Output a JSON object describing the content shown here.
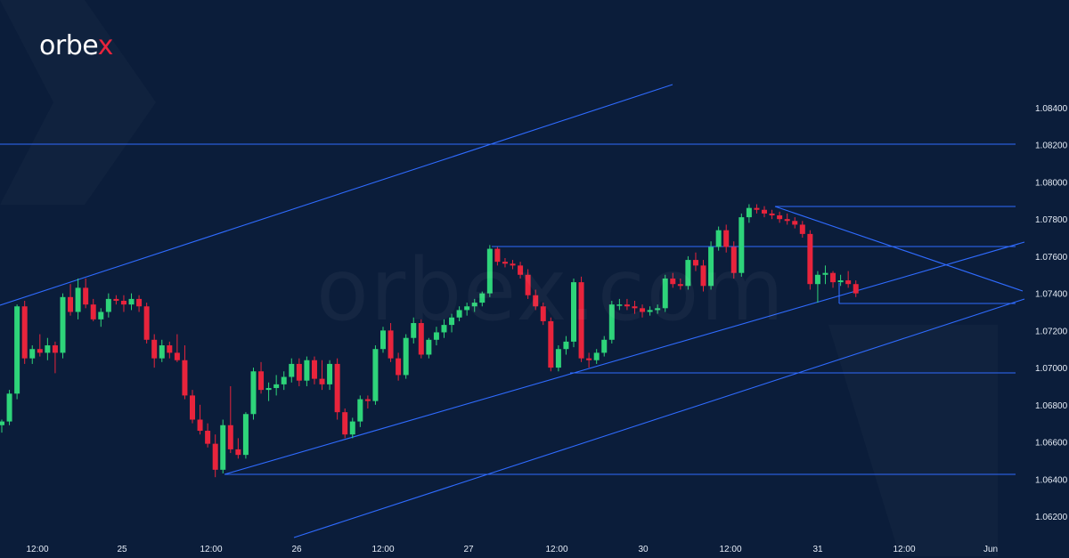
{
  "brand": {
    "name": "orbe",
    "name_x": "x",
    "watermark": "orbex.com"
  },
  "colors": {
    "background": "#0b1d3a",
    "line": "#2f6bff",
    "bull": "#2ed47a",
    "bear": "#e8243c",
    "text": "#e6edf7"
  },
  "chart_data": {
    "type": "candlestick",
    "title": "",
    "xlabel": "",
    "ylabel": "",
    "ylim": [
      1.061,
      1.086
    ],
    "y_ticks": [
      "1.06200",
      "1.06400",
      "1.06600",
      "1.06800",
      "1.07000",
      "1.07200",
      "1.07400",
      "1.07600",
      "1.07800",
      "1.08000",
      "1.08200",
      "1.08400"
    ],
    "x_ticks": [
      "12:00",
      "25",
      "12:00",
      "26",
      "12:00",
      "27",
      "12:00",
      "30",
      "12:00",
      "31",
      "12:00",
      "Jun"
    ],
    "candles": [
      [
        1.0669,
        1.0672,
        1.0665,
        1.0671
      ],
      [
        1.0671,
        1.0688,
        1.0669,
        1.0686
      ],
      [
        1.0686,
        1.0734,
        1.0683,
        1.0733
      ],
      [
        1.0733,
        1.0736,
        1.0702,
        1.0705
      ],
      [
        1.0705,
        1.0712,
        1.0702,
        1.071
      ],
      [
        1.071,
        1.0718,
        1.0706,
        1.0708
      ],
      [
        1.0708,
        1.0716,
        1.0704,
        1.0712
      ],
      [
        1.0712,
        1.0714,
        1.0697,
        1.0708
      ],
      [
        1.0708,
        1.074,
        1.0705,
        1.0738
      ],
      [
        1.0738,
        1.0745,
        1.0728,
        1.073
      ],
      [
        1.073,
        1.0748,
        1.0726,
        1.0743
      ],
      [
        1.0743,
        1.0748,
        1.0732,
        1.0734
      ],
      [
        1.0734,
        1.0737,
        1.0725,
        1.0726
      ],
      [
        1.0726,
        1.0732,
        1.0722,
        1.073
      ],
      [
        1.073,
        1.074,
        1.0727,
        1.0737
      ],
      [
        1.0737,
        1.0739,
        1.0734,
        1.0736
      ],
      [
        1.0736,
        1.0739,
        1.073,
        1.0734
      ],
      [
        1.0734,
        1.074,
        1.0731,
        1.0737
      ],
      [
        1.0737,
        1.0739,
        1.073,
        1.0733
      ],
      [
        1.0733,
        1.0735,
        1.0713,
        1.0715
      ],
      [
        1.0715,
        1.0718,
        1.07,
        1.0705
      ],
      [
        1.0705,
        1.0715,
        1.0703,
        1.0712
      ],
      [
        1.0712,
        1.0714,
        1.0705,
        1.0708
      ],
      [
        1.0708,
        1.0718,
        1.0703,
        1.0704
      ],
      [
        1.0704,
        1.0712,
        1.0683,
        1.0685
      ],
      [
        1.0685,
        1.0688,
        1.067,
        1.0672
      ],
      [
        1.0672,
        1.068,
        1.0664,
        1.0666
      ],
      [
        1.0666,
        1.067,
        1.0657,
        1.0659
      ],
      [
        1.0659,
        1.0664,
        1.0641,
        1.0645
      ],
      [
        1.0645,
        1.0672,
        1.0643,
        1.0669
      ],
      [
        1.0669,
        1.069,
        1.0654,
        1.0656
      ],
      [
        1.0656,
        1.0662,
        1.0651,
        1.0653
      ],
      [
        1.0653,
        1.0676,
        1.0651,
        1.0675
      ],
      [
        1.0675,
        1.07,
        1.0672,
        1.0698
      ],
      [
        1.0698,
        1.0703,
        1.0686,
        1.0688
      ],
      [
        1.0688,
        1.0692,
        1.0682,
        1.0689
      ],
      [
        1.0689,
        1.0696,
        1.0685,
        1.0691
      ],
      [
        1.0691,
        1.0698,
        1.0688,
        1.0695
      ],
      [
        1.0695,
        1.0705,
        1.0692,
        1.0702
      ],
      [
        1.0702,
        1.0705,
        1.069,
        1.0693
      ],
      [
        1.0693,
        1.0706,
        1.069,
        1.0704
      ],
      [
        1.0704,
        1.0706,
        1.0691,
        1.0694
      ],
      [
        1.0694,
        1.0704,
        1.0688,
        1.0691
      ],
      [
        1.0691,
        1.0704,
        1.0688,
        1.0702
      ],
      [
        1.0702,
        1.0705,
        1.0672,
        1.0676
      ],
      [
        1.0676,
        1.0678,
        1.0662,
        1.0664
      ],
      [
        1.0664,
        1.0673,
        1.0662,
        1.0671
      ],
      [
        1.0671,
        1.0685,
        1.0668,
        1.0683
      ],
      [
        1.0683,
        1.0685,
        1.0678,
        1.0682
      ],
      [
        1.0682,
        1.0712,
        1.068,
        1.071
      ],
      [
        1.071,
        1.0722,
        1.0708,
        1.072
      ],
      [
        1.072,
        1.0724,
        1.0703,
        1.0705
      ],
      [
        1.0705,
        1.0708,
        1.0693,
        1.0696
      ],
      [
        1.0696,
        1.0718,
        1.0694,
        1.0716
      ],
      [
        1.0716,
        1.0727,
        1.0713,
        1.0724
      ],
      [
        1.0724,
        1.0726,
        1.0705,
        1.0707
      ],
      [
        1.0707,
        1.0716,
        1.0705,
        1.0715
      ],
      [
        1.0715,
        1.0722,
        1.0712,
        1.0719
      ],
      [
        1.0719,
        1.0726,
        1.0716,
        1.0723
      ],
      [
        1.0723,
        1.0729,
        1.0719,
        1.0727
      ],
      [
        1.0727,
        1.0733,
        1.0725,
        1.0731
      ],
      [
        1.0731,
        1.0735,
        1.0728,
        1.0733
      ],
      [
        1.0733,
        1.0737,
        1.073,
        1.0735
      ],
      [
        1.0735,
        1.0741,
        1.0733,
        1.074
      ],
      [
        1.074,
        1.0766,
        1.0738,
        1.0764
      ],
      [
        1.0764,
        1.0765,
        1.0755,
        1.0757
      ],
      [
        1.0757,
        1.0759,
        1.0754,
        1.0756
      ],
      [
        1.0756,
        1.0758,
        1.0753,
        1.0755
      ],
      [
        1.0755,
        1.0757,
        1.0748,
        1.075
      ],
      [
        1.075,
        1.0753,
        1.0737,
        1.0739
      ],
      [
        1.0739,
        1.0742,
        1.0731,
        1.0733
      ],
      [
        1.0733,
        1.0735,
        1.0723,
        1.0725
      ],
      [
        1.0725,
        1.0727,
        1.0698,
        1.07
      ],
      [
        1.07,
        1.0712,
        1.0698,
        1.071
      ],
      [
        1.071,
        1.0717,
        1.0707,
        1.0714
      ],
      [
        1.0714,
        1.0748,
        1.0711,
        1.0746
      ],
      [
        1.0746,
        1.0749,
        1.0703,
        1.0705
      ],
      [
        1.0705,
        1.0708,
        1.07,
        1.0704
      ],
      [
        1.0704,
        1.071,
        1.0702,
        1.0708
      ],
      [
        1.0708,
        1.0717,
        1.0706,
        1.0715
      ],
      [
        1.0715,
        1.0736,
        1.0713,
        1.0734
      ],
      [
        1.0734,
        1.0737,
        1.0731,
        1.0734
      ],
      [
        1.0734,
        1.0737,
        1.0731,
        1.0733
      ],
      [
        1.0733,
        1.0736,
        1.0729,
        1.0732
      ],
      [
        1.0732,
        1.0734,
        1.0727,
        1.073
      ],
      [
        1.073,
        1.0733,
        1.0728,
        1.0731
      ],
      [
        1.0731,
        1.0734,
        1.0729,
        1.0732
      ],
      [
        1.0732,
        1.075,
        1.073,
        1.0748
      ],
      [
        1.0748,
        1.0751,
        1.0743,
        1.0745
      ],
      [
        1.0745,
        1.0748,
        1.0742,
        1.0744
      ],
      [
        1.0744,
        1.076,
        1.0742,
        1.0758
      ],
      [
        1.0758,
        1.0762,
        1.0752,
        1.0755
      ],
      [
        1.0755,
        1.0758,
        1.0741,
        1.0744
      ],
      [
        1.0744,
        1.0768,
        1.0742,
        1.0765
      ],
      [
        1.0765,
        1.0776,
        1.0763,
        1.0774
      ],
      [
        1.0774,
        1.0777,
        1.0762,
        1.0765
      ],
      [
        1.0765,
        1.0768,
        1.0748,
        1.0751
      ],
      [
        1.0751,
        1.0783,
        1.0749,
        1.0781
      ],
      [
        1.0781,
        1.0788,
        1.0778,
        1.0786
      ],
      [
        1.0786,
        1.0788,
        1.0783,
        1.0785
      ],
      [
        1.0785,
        1.0787,
        1.0781,
        1.0783
      ],
      [
        1.0783,
        1.0785,
        1.078,
        1.0782
      ],
      [
        1.0782,
        1.0784,
        1.0778,
        1.078
      ],
      [
        1.078,
        1.0783,
        1.0777,
        1.0779
      ],
      [
        1.0779,
        1.0781,
        1.0775,
        1.0777
      ],
      [
        1.0777,
        1.0779,
        1.077,
        1.0772
      ],
      [
        1.0772,
        1.0774,
        1.0742,
        1.0745
      ],
      [
        1.0745,
        1.0752,
        1.0735,
        1.075
      ],
      [
        1.075,
        1.0755,
        1.0745,
        1.0751
      ],
      [
        1.0751,
        1.0752,
        1.0743,
        1.0746
      ],
      [
        1.0746,
        1.075,
        1.0744,
        1.0747
      ],
      [
        1.0747,
        1.0752,
        1.0743,
        1.0745
      ],
      [
        1.0745,
        1.0747,
        1.0738,
        1.074
      ]
    ]
  }
}
